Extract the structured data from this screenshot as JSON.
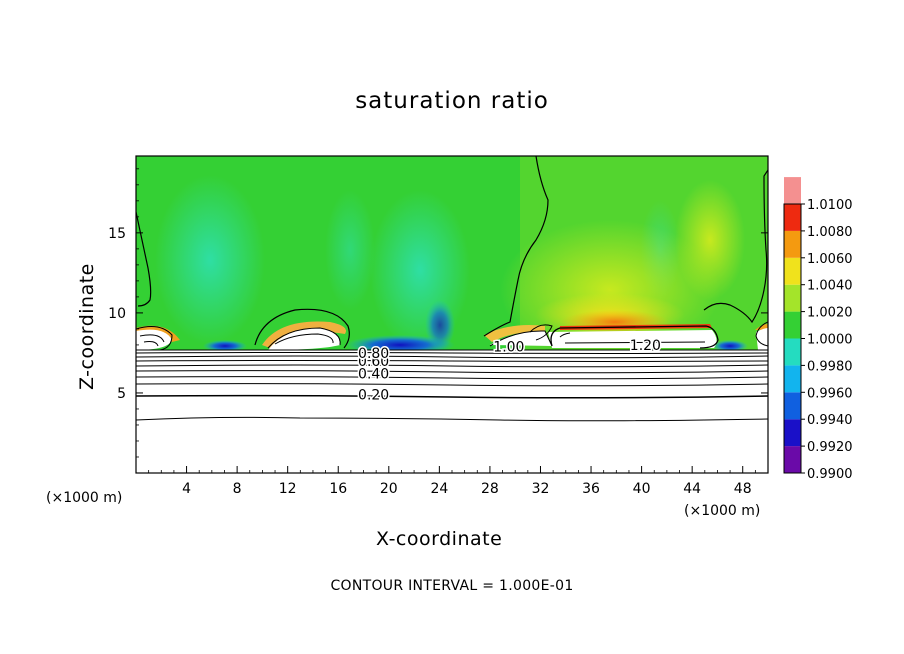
{
  "chart_data": {
    "type": "heatmap",
    "title": "saturation ratio",
    "xlabel": "X-coordinate",
    "ylabel": "Z-coordinate",
    "x_unit_label": "(×1000 m)",
    "x_ticks": [
      4,
      8,
      12,
      16,
      20,
      24,
      28,
      32,
      36,
      40,
      44,
      48
    ],
    "y_ticks": [
      5,
      10,
      15
    ],
    "xlim": [
      0,
      50
    ],
    "ylim": [
      0,
      19.8
    ],
    "colorbar": {
      "levels": [
        0.99,
        0.992,
        0.994,
        0.996,
        0.998,
        1.0,
        1.002,
        1.004,
        1.006,
        1.008,
        1.01
      ],
      "tick_labels": [
        "0.9900",
        "0.9920",
        "0.9940",
        "0.9960",
        "0.9980",
        "1.0000",
        "1.0020",
        "1.0040",
        "1.0060",
        "1.0080",
        "1.0100"
      ],
      "colors": [
        "#6a0aa8",
        "#1a10c8",
        "#1060e0",
        "#12b4ee",
        "#24dcc0",
        "#34d034",
        "#a4e42a",
        "#f0e21c",
        "#f49a10",
        "#ee2a10",
        "#f49090"
      ]
    },
    "contour_labels": [
      {
        "text": "0.20",
        "x": 18.8,
        "z": 4.9
      },
      {
        "text": "0.40",
        "x": 18.8,
        "z": 6.2
      },
      {
        "text": "0.60",
        "x": 18.8,
        "z": 7.0
      },
      {
        "text": "0.80",
        "x": 18.8,
        "z": 7.5
      },
      {
        "text": "1.00",
        "x": 29.5,
        "z": 7.9
      },
      {
        "text": "1.20",
        "x": 40.3,
        "z": 8.0
      }
    ],
    "contour_interval_text": "CONTOUR INTERVAL = 1.000E-01"
  }
}
